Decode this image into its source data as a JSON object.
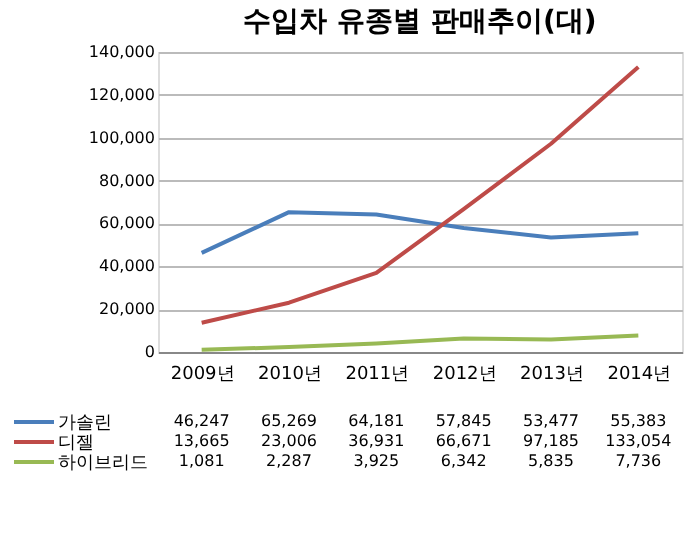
{
  "chart_data": {
    "type": "line",
    "title": "수입차 유종별 판매추이(대)",
    "categories": [
      "2009년",
      "2010년",
      "2011년",
      "2012년",
      "2013년",
      "2014년"
    ],
    "series": [
      {
        "name": "가솔린",
        "color": "#4a7ebb",
        "values": [
          46247,
          65269,
          64181,
          57845,
          53477,
          55383
        ],
        "value_labels": [
          "46,247",
          "65,269",
          "64,181",
          "57,845",
          "53,477",
          "55,383"
        ]
      },
      {
        "name": "디젤",
        "color": "#be4b48",
        "values": [
          13665,
          23006,
          36931,
          66671,
          97185,
          133054
        ],
        "value_labels": [
          "13,665",
          "23,006",
          "36,931",
          "66,671",
          "97,185",
          "133,054"
        ]
      },
      {
        "name": "하이브리드",
        "color": "#98b954",
        "values": [
          1081,
          2287,
          3925,
          6342,
          5835,
          7736
        ],
        "value_labels": [
          "1,081",
          "2,287",
          "3,925",
          "6,342",
          "5,835",
          "7,736"
        ]
      }
    ],
    "ylim": [
      0,
      140000
    ],
    "yticks": [
      {
        "value": 0,
        "label": "0"
      },
      {
        "value": 20000,
        "label": "20,000"
      },
      {
        "value": 40000,
        "label": "40,000"
      },
      {
        "value": 60000,
        "label": "60,000"
      },
      {
        "value": 80000,
        "label": "80,000"
      },
      {
        "value": 100000,
        "label": "100,000"
      },
      {
        "value": 120000,
        "label": "120,000"
      },
      {
        "value": 140000,
        "label": "140,000"
      }
    ],
    "grid": "y",
    "legend": "bottom",
    "marker": "none",
    "line_style": "solid"
  }
}
